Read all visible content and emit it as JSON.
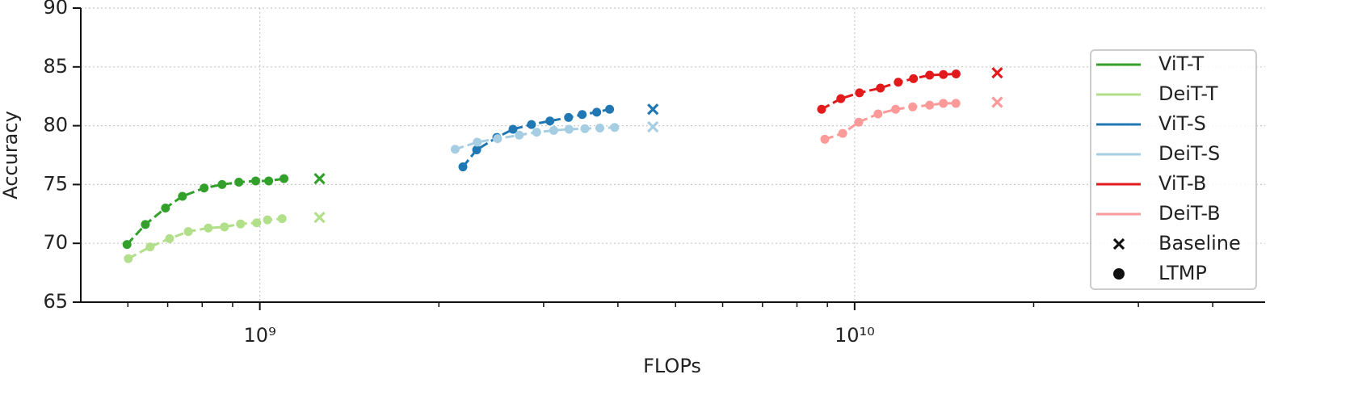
{
  "chart_data": {
    "type": "line",
    "xlabel": "FLOPs",
    "ylabel": "Accuracy",
    "xscale": "log",
    "grid": true,
    "linestyle": "dashed",
    "legend": "right",
    "xlim": [
      500000000.0,
      49000000000.0
    ],
    "ylim": [
      65,
      90
    ],
    "xticks": [
      {
        "value": 1000000000.0,
        "label": "10⁹"
      },
      {
        "value": 10000000000.0,
        "label": "10¹⁰"
      }
    ],
    "xminorticks": [
      600000000.0,
      700000000.0,
      800000000.0,
      900000000.0,
      2000000000.0,
      3000000000.0,
      4000000000.0,
      5000000000.0,
      6000000000.0,
      7000000000.0,
      8000000000.0,
      9000000000.0,
      20000000000.0,
      30000000000.0,
      40000000000.0
    ],
    "yticks": [
      65,
      70,
      75,
      80,
      85,
      90
    ],
    "markers": [
      {
        "name": "Baseline",
        "shape": "x"
      },
      {
        "name": "LTMP",
        "shape": "circle"
      }
    ],
    "series": [
      {
        "name": "ViT-T",
        "color": "#33a02c",
        "x": [
          598000000.0,
          642000000.0,
          694000000.0,
          741000000.0,
          806000000.0,
          864000000.0,
          922000000.0,
          984000000.0,
          1035000000.0,
          1098000000.0
        ],
        "values": [
          69.9,
          71.6,
          73.0,
          74.0,
          74.7,
          75.0,
          75.2,
          75.3,
          75.3,
          75.5
        ],
        "baseline": {
          "x": 1260000000.0,
          "value": 75.5
        }
      },
      {
        "name": "DeiT-T",
        "color": "#b2df8a",
        "x": [
          601000000.0,
          654000000.0,
          705000000.0,
          758000000.0,
          819000000.0,
          872000000.0,
          928000000.0,
          988000000.0,
          1030000000.0,
          1090000000.0
        ],
        "values": [
          68.7,
          69.7,
          70.4,
          71.0,
          71.3,
          71.4,
          71.65,
          71.75,
          72.0,
          72.1
        ],
        "baseline": {
          "x": 1260000000.0,
          "value": 72.2
        }
      },
      {
        "name": "ViT-S",
        "color": "#1f78b4",
        "x": [
          2195000000.0,
          2315000000.0,
          2503000000.0,
          2665000000.0,
          2862000000.0,
          3074000000.0,
          3304000000.0,
          3483000000.0,
          3685000000.0,
          3873000000.0
        ],
        "values": [
          76.5,
          77.95,
          79.0,
          79.7,
          80.1,
          80.4,
          80.7,
          80.95,
          81.15,
          81.4
        ],
        "baseline": {
          "x": 4580000000.0,
          "value": 81.4
        }
      },
      {
        "name": "DeiT-S",
        "color": "#a6cee3",
        "x": [
          2130000000.0,
          2320000000.0,
          2510000000.0,
          2730000000.0,
          2920000000.0,
          3120000000.0,
          3310000000.0,
          3520000000.0,
          3730000000.0,
          3950000000.0
        ],
        "values": [
          78.0,
          78.6,
          78.9,
          79.2,
          79.45,
          79.6,
          79.7,
          79.75,
          79.8,
          79.85
        ],
        "baseline": {
          "x": 4580000000.0,
          "value": 79.9
        }
      },
      {
        "name": "ViT-B",
        "color": "#e31a1c",
        "x": [
          8800000000.0,
          9480000000.0,
          10190000000.0,
          11050000000.0,
          11840000000.0,
          12560000000.0,
          13370000000.0,
          14100000000.0,
          14810000000.0
        ],
        "values": [
          81.4,
          82.3,
          82.8,
          83.2,
          83.7,
          84.0,
          84.3,
          84.35,
          84.4
        ],
        "baseline": {
          "x": 17370000000.0,
          "value": 84.5
        }
      },
      {
        "name": "DeiT-B",
        "color": "#fb9a99",
        "x": [
          8910000000.0,
          9550000000.0,
          10160000000.0,
          10950000000.0,
          11720000000.0,
          12520000000.0,
          13370000000.0,
          14100000000.0,
          14800000000.0
        ],
        "values": [
          78.85,
          79.35,
          80.3,
          81.0,
          81.4,
          81.6,
          81.75,
          81.9,
          81.9
        ],
        "baseline": {
          "x": 17370000000.0,
          "value": 82.0
        }
      }
    ]
  }
}
